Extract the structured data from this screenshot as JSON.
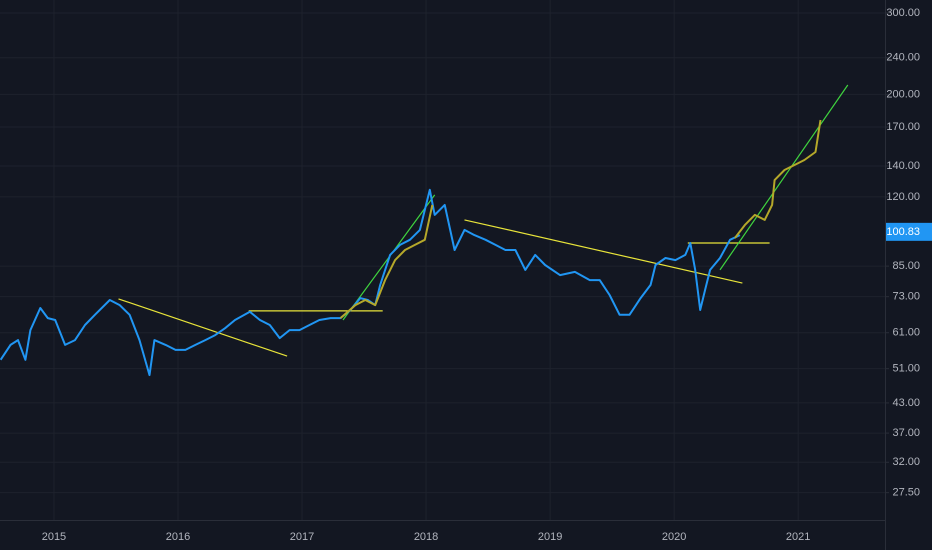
{
  "chart_data": {
    "type": "line",
    "log_scale": true,
    "grid": true,
    "xlim": [
      2014.565,
      2021.7
    ],
    "ylim": [
      24,
      320
    ],
    "xticks": [
      2015,
      2016,
      2017,
      2018,
      2019,
      2020,
      2021
    ],
    "yticks": [
      {
        "value": 300,
        "label": "300.00"
      },
      {
        "value": 240,
        "label": "240.00"
      },
      {
        "value": 200,
        "label": "200.00"
      },
      {
        "value": 170,
        "label": "170.00"
      },
      {
        "value": 140,
        "label": "140.00"
      },
      {
        "value": 120,
        "label": "120.00"
      },
      {
        "value": 85,
        "label": "85.00"
      },
      {
        "value": 73,
        "label": "73.00"
      },
      {
        "value": 61,
        "label": "61.00"
      },
      {
        "value": 51,
        "label": "51.00"
      },
      {
        "value": 43,
        "label": "43.00"
      },
      {
        "value": 37,
        "label": "37.00"
      },
      {
        "value": 32,
        "label": "32.00"
      },
      {
        "value": 27.5,
        "label": "27.50"
      }
    ],
    "last_price": {
      "value": 100.83,
      "label": "100.83",
      "color": "#2196f3"
    },
    "series": [
      {
        "color": "#2196f3",
        "x": [
          2014.57,
          2014.65,
          2014.71,
          2014.77,
          2014.81,
          2014.89,
          2014.95,
          2015.01,
          2015.09,
          2015.17,
          2015.25,
          2015.33,
          2015.45,
          2015.53,
          2015.61,
          2015.69,
          2015.77,
          2015.81,
          2015.9,
          2015.98,
          2016.06,
          2016.14,
          2016.22,
          2016.3,
          2016.38,
          2016.46,
          2016.58,
          2016.66,
          2016.74,
          2016.82,
          2016.9,
          2016.98,
          2017.06,
          2017.14,
          2017.23,
          2017.31,
          2017.39,
          2017.47,
          2017.53,
          2017.59,
          2017.63,
          2017.71,
          2017.79,
          2017.87,
          2017.95,
          2018.03,
          2018.07,
          2018.15,
          2018.23,
          2018.31,
          2018.39,
          2018.48,
          2018.56,
          2018.64,
          2018.72,
          2018.8,
          2018.88,
          2018.96,
          2019.08,
          2019.2,
          2019.32,
          2019.4,
          2019.48,
          2019.56,
          2019.64,
          2019.73,
          2019.81,
          2019.85,
          2019.93,
          2020.01,
          2020.09,
          2020.13,
          2020.17,
          2020.21,
          2020.25,
          2020.29,
          2020.37,
          2020.45,
          2020.53
        ],
        "values": [
          53.3,
          57.4,
          58.8,
          53.3,
          61.8,
          69.0,
          65.6,
          65.0,
          57.4,
          58.8,
          63.4,
          66.7,
          71.8,
          70.0,
          66.7,
          58.8,
          49.4,
          58.8,
          57.4,
          56.0,
          56.0,
          57.4,
          58.8,
          60.3,
          62.4,
          65.0,
          67.7,
          65.0,
          63.4,
          59.4,
          61.8,
          61.8,
          63.4,
          65.0,
          65.6,
          65.6,
          68.3,
          72.5,
          71.8,
          70.0,
          77.4,
          89.9,
          94.5,
          96.9,
          101.8,
          124.3,
          109.7,
          115.3,
          92.1,
          101.8,
          99.2,
          96.9,
          94.5,
          92.1,
          92.1,
          83.4,
          89.9,
          85.5,
          81.3,
          82.6,
          79.3,
          79.3,
          73.6,
          66.7,
          66.7,
          72.5,
          77.4,
          85.5,
          88.5,
          87.6,
          89.9,
          95.4,
          83.4,
          68.3,
          75.5,
          83.4,
          88.5,
          96.9,
          99.2
        ]
      },
      {
        "color": "#b5a82a",
        "x": [
          2017.31,
          2017.43,
          2017.51,
          2017.59,
          2017.67,
          2017.75,
          2017.83,
          2017.91,
          2017.99,
          2018.05,
          2018.1,
          2020.49,
          2020.57,
          2020.65,
          2020.73,
          2020.79,
          2020.81,
          2020.89,
          2020.97,
          2021.05,
          2021.14,
          2021.18
        ],
        "values": [
          65.6,
          70.0,
          71.8,
          70.0,
          79.3,
          87.6,
          92.1,
          94.5,
          96.9,
          115.3,
          null,
          97.8,
          104.3,
          109.7,
          107.0,
          115.3,
          130.5,
          137.2,
          140.7,
          144.2,
          150.1,
          176.0
        ]
      }
    ],
    "drawings": [
      {
        "color": "#e8e43a",
        "x": [
          2015.52,
          2016.88
        ],
        "values": [
          72.2,
          54.3
        ]
      },
      {
        "color": "#e8e43a",
        "x": [
          2016.57,
          2017.65
        ],
        "values": [
          68.0,
          68.0
        ]
      },
      {
        "color": "#3fd43f",
        "x": [
          2017.33,
          2018.07
        ],
        "values": [
          65.0,
          121.2
        ]
      },
      {
        "color": "#e8e43a",
        "x": [
          2018.31,
          2020.55
        ],
        "values": [
          107.0,
          78.1
        ]
      },
      {
        "color": "#e8e43a",
        "x": [
          2020.11,
          2020.77
        ],
        "values": [
          95.4,
          95.4
        ]
      },
      {
        "color": "#3fd43f",
        "x": [
          2020.37,
          2021.4
        ],
        "values": [
          83.4,
          209.5
        ]
      }
    ]
  }
}
